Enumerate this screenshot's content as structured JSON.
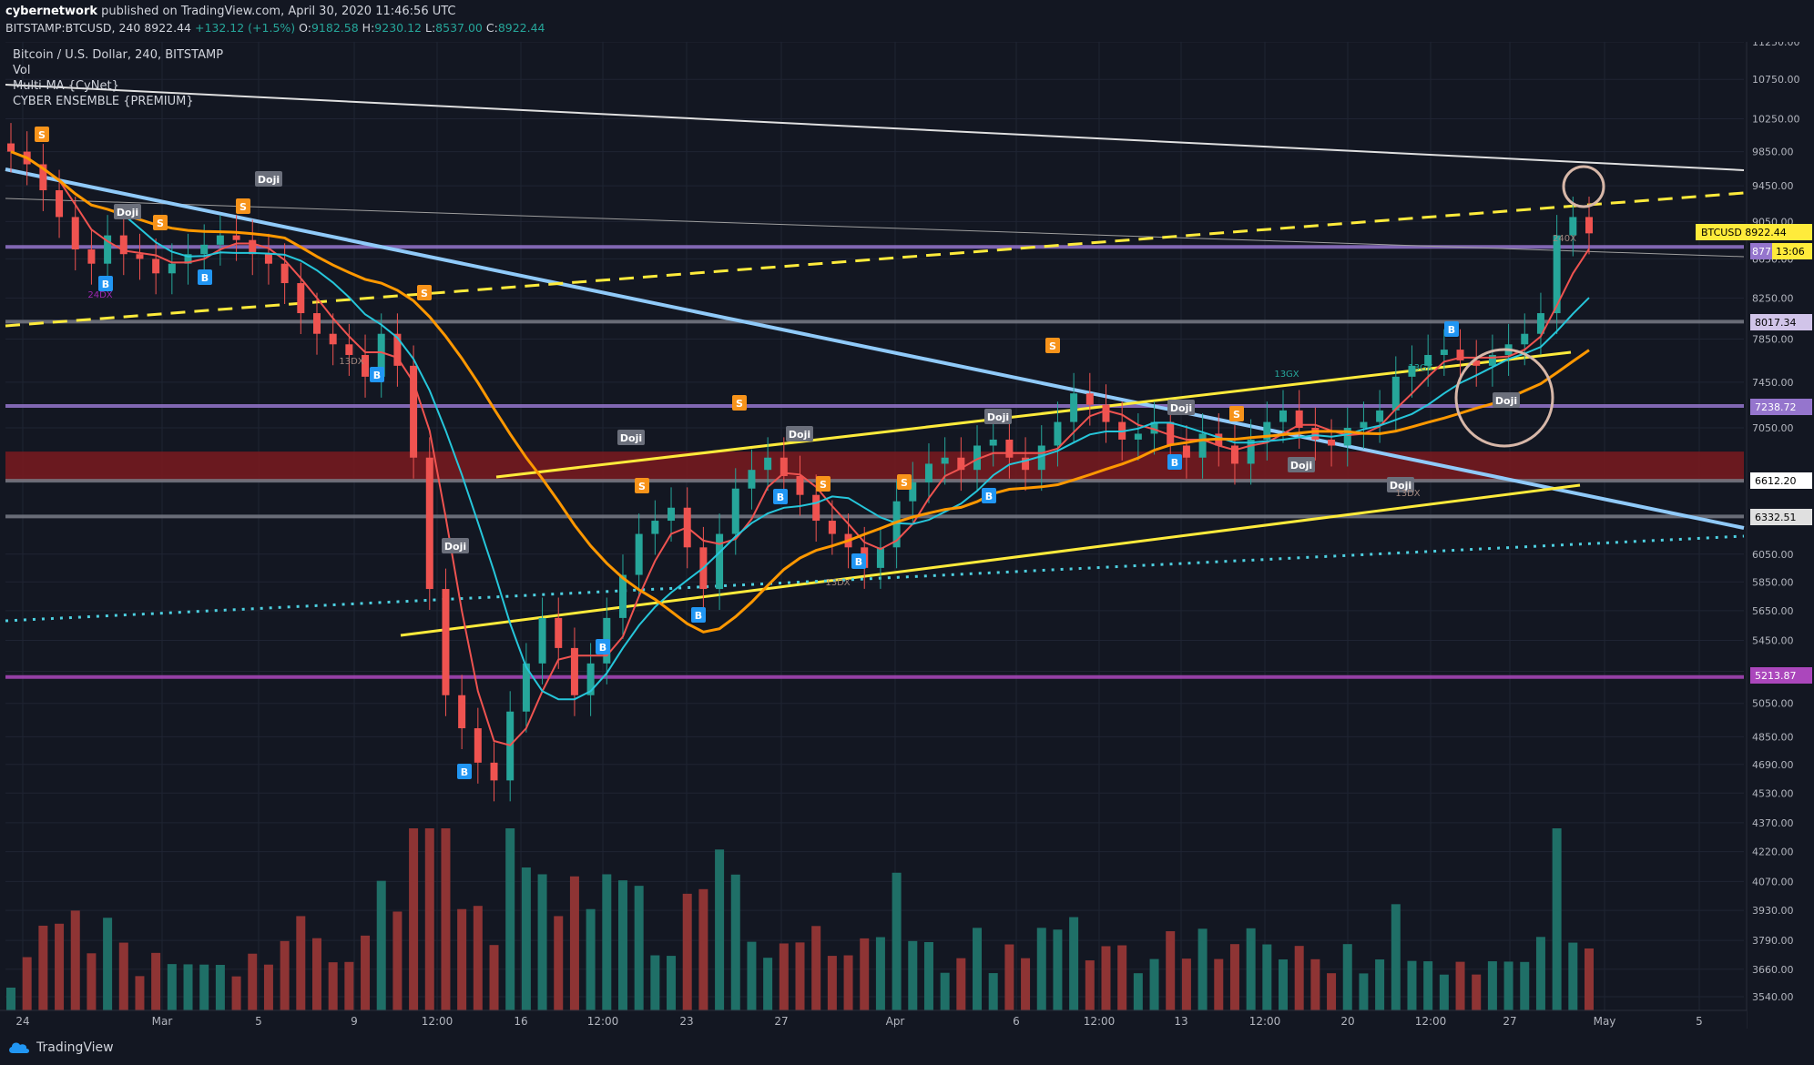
{
  "header": {
    "author": "cybernetwork",
    "published_text": "published on TradingView.com, April 30, 2020 11:46:56 UTC",
    "symbol": "BITSTAMP:BTCUSD, 240",
    "price": "8922.44",
    "change": "+132.12 (+1.5%)",
    "o_label": "O:",
    "o": "9182.58",
    "h_label": "H:",
    "h": "9230.12",
    "l_label": "L:",
    "l": "8537.00",
    "c_label": "C:",
    "c": "8922.44"
  },
  "legend": {
    "series": "Bitcoin / U.S. Dollar, 240, BITSTAMP",
    "vol": "Vol",
    "ma": "Multi-MA {CyNet}",
    "ensemble": "CYBER ENSEMBLE {PREMIUM}"
  },
  "footer": {
    "brand": "TradingView"
  },
  "colors": {
    "background": "#131722",
    "up": "#26a69a",
    "down": "#ef5350",
    "yellow_trend": "#ffeb3b",
    "blue_trend": "#90caf9",
    "orange_ma": "#ff9800",
    "purple_level": "#9575cd",
    "cyan_dotted": "#4dd0e1"
  },
  "chart_data": {
    "type": "candlestick",
    "y_axis": {
      "scale": "log",
      "ticks": [
        "11250.00",
        "10750.00",
        "10250.00",
        "9850.00",
        "9450.00",
        "9050.00",
        "8650.00",
        "8250.00",
        "7850.00",
        "7450.00",
        "7050.00",
        "6650.00",
        "6050.00",
        "5850.00",
        "5650.00",
        "5450.00",
        "5250.00",
        "5050.00",
        "4850.00",
        "4690.00",
        "4530.00",
        "4370.00",
        "4220.00",
        "4070.00",
        "3930.00",
        "3790.00",
        "3660.00",
        "3540.00"
      ]
    },
    "x_axis": {
      "ticks": [
        "24",
        "Mar",
        "5",
        "9",
        "12:00",
        "16",
        "12:00",
        "23",
        "27",
        "Apr",
        "6",
        "12:00",
        "13",
        "12:00",
        "20",
        "12:00",
        "27",
        "May",
        "5"
      ]
    },
    "price_labels": [
      {
        "text": "BTCUSD",
        "value": "8922.44",
        "kind": "current"
      },
      {
        "text": "8777",
        "value": "8777",
        "kind": "level"
      },
      {
        "text": "13:06",
        "value": "13:06",
        "kind": "countdown"
      },
      {
        "text": "8017.34",
        "value": "8017.34",
        "kind": "level"
      },
      {
        "text": "7238.72",
        "value": "7238.72",
        "kind": "level"
      },
      {
        "text": "6612.20",
        "value": "6612.20",
        "kind": "level"
      },
      {
        "text": "6332.51",
        "value": "6332.51",
        "kind": "level"
      },
      {
        "text": "5213.87",
        "value": "5213.87",
        "kind": "level"
      }
    ],
    "horizontal_levels": [
      {
        "value": 8777,
        "color": "#9575cd"
      },
      {
        "value": 8017.34,
        "color": "#787b86"
      },
      {
        "value": 7238.72,
        "color": "#9575cd"
      },
      {
        "value": 6612.2,
        "color": "#787b86"
      },
      {
        "value": 6332.51,
        "color": "#787b86"
      },
      {
        "value": 5213.87,
        "color": "#ab47bc"
      }
    ],
    "resistance_zone": {
      "from": 6612.2,
      "to": 6850
    },
    "signal_labels": [
      "S",
      "S",
      "S",
      "S",
      "S",
      "S",
      "S",
      "S",
      "S",
      "S",
      "B",
      "B",
      "B",
      "B",
      "B",
      "B",
      "B",
      "B",
      "B",
      "B",
      "B",
      "Doji",
      "Doji",
      "Doji",
      "Doji",
      "Doji",
      "Doji",
      "Doji",
      "Doji",
      "Doji",
      "Doji"
    ],
    "annotations": [
      "24DX",
      "13DX",
      "13DX",
      "13DX",
      "13GX",
      "13GX",
      "240X"
    ],
    "close_path": [
      9850,
      9700,
      9400,
      9100,
      8750,
      8600,
      8900,
      8700,
      8650,
      8500,
      8600,
      8700,
      8800,
      8900,
      8850,
      8700,
      8600,
      8400,
      8100,
      7900,
      7800,
      7700,
      7500,
      7900,
      7600,
      6800,
      5800,
      5100,
      4900,
      4700,
      4600,
      5000,
      5300,
      5600,
      5400,
      5100,
      5300,
      5600,
      5900,
      6200,
      6300,
      6400,
      6100,
      5800,
      6200,
      6550,
      6700,
      6800,
      6650,
      6500,
      6300,
      6200,
      6100,
      5950,
      6100,
      6450,
      6600,
      6750,
      6800,
      6700,
      6900,
      6950,
      6800,
      6700,
      6900,
      7100,
      7350,
      7250,
      7100,
      6950,
      7000,
      7100,
      6900,
      6800,
      7000,
      6900,
      6750,
      6950,
      7100,
      7200,
      7050,
      6950,
      6900,
      7050,
      7100,
      7200,
      7500,
      7600,
      7700,
      7750,
      7650,
      7600,
      7700,
      7800,
      7900,
      8100,
      8900,
      9100,
      8922
    ]
  }
}
